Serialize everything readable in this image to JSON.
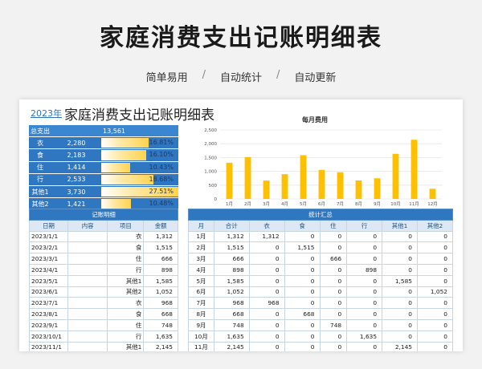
{
  "hero": {
    "title": "家庭消费支出记账明细表"
  },
  "tags": [
    "简单易用",
    "自动统计",
    "自动更新"
  ],
  "tag_sep": "/",
  "sheet": {
    "year": "2023年",
    "title": "家庭消费支出记账明细表"
  },
  "summary": {
    "total_label": "总支出",
    "total_value": "13,561",
    "rows": [
      {
        "name": "衣",
        "amount": "2,280",
        "pct": "16.81%",
        "frac": 0.1681
      },
      {
        "name": "食",
        "amount": "2,183",
        "pct": "16.10%",
        "frac": 0.161
      },
      {
        "name": "住",
        "amount": "1,414",
        "pct": "10.43%",
        "frac": 0.1043
      },
      {
        "name": "行",
        "amount": "2,533",
        "pct": "18.68%",
        "frac": 0.1868
      },
      {
        "name": "其他1",
        "amount": "3,730",
        "pct": "27.51%",
        "frac": 0.2751
      },
      {
        "name": "其他2",
        "amount": "1,421",
        "pct": "10.48%",
        "frac": 0.1048
      }
    ]
  },
  "chart_data": {
    "type": "bar",
    "title": "每月费用",
    "categories": [
      "1月",
      "2月",
      "3月",
      "4月",
      "5月",
      "6月",
      "7月",
      "8月",
      "9月",
      "10月",
      "11月",
      "12月"
    ],
    "values": [
      1312,
      1515,
      666,
      898,
      1585,
      1052,
      968,
      668,
      748,
      1635,
      2145,
      369
    ],
    "yticks": [
      "0",
      "500",
      "1,000",
      "1,500",
      "2,000",
      "2,500"
    ],
    "ylim": [
      0,
      2500
    ],
    "color": "#ffc000"
  },
  "ledger": {
    "title": "记账明细",
    "headers": [
      "日期",
      "内容",
      "项目",
      "金额"
    ],
    "rows": [
      [
        "2023/1/1",
        "",
        "衣",
        "1,312"
      ],
      [
        "2023/2/1",
        "",
        "食",
        "1,515"
      ],
      [
        "2023/3/1",
        "",
        "住",
        "666"
      ],
      [
        "2023/4/1",
        "",
        "行",
        "898"
      ],
      [
        "2023/5/1",
        "",
        "其他1",
        "1,585"
      ],
      [
        "2023/6/1",
        "",
        "其他2",
        "1,052"
      ],
      [
        "2023/7/1",
        "",
        "衣",
        "968"
      ],
      [
        "2023/8/1",
        "",
        "食",
        "668"
      ],
      [
        "2023/9/1",
        "",
        "住",
        "748"
      ],
      [
        "2023/10/1",
        "",
        "行",
        "1,635"
      ],
      [
        "2023/11/1",
        "",
        "其他1",
        "2,145"
      ]
    ]
  },
  "stats": {
    "title": "统计汇总",
    "headers": [
      "月",
      "合计",
      "衣",
      "食",
      "住",
      "行",
      "其他1",
      "其他2"
    ],
    "rows": [
      [
        "1月",
        "1,312",
        "1,312",
        "0",
        "0",
        "0",
        "0",
        "0"
      ],
      [
        "2月",
        "1,515",
        "0",
        "1,515",
        "0",
        "0",
        "0",
        "0"
      ],
      [
        "3月",
        "666",
        "0",
        "0",
        "666",
        "0",
        "0",
        "0"
      ],
      [
        "4月",
        "898",
        "0",
        "0",
        "0",
        "898",
        "0",
        "0"
      ],
      [
        "5月",
        "1,585",
        "0",
        "0",
        "0",
        "0",
        "1,585",
        "0"
      ],
      [
        "6月",
        "1,052",
        "0",
        "0",
        "0",
        "0",
        "0",
        "1,052"
      ],
      [
        "7月",
        "968",
        "968",
        "0",
        "0",
        "0",
        "0",
        "0"
      ],
      [
        "8月",
        "668",
        "0",
        "668",
        "0",
        "0",
        "0",
        "0"
      ],
      [
        "9月",
        "748",
        "0",
        "0",
        "748",
        "0",
        "0",
        "0"
      ],
      [
        "10月",
        "1,635",
        "0",
        "0",
        "0",
        "1,635",
        "0",
        "0"
      ],
      [
        "11月",
        "2,145",
        "0",
        "0",
        "0",
        "0",
        "2,145",
        "0"
      ]
    ]
  }
}
